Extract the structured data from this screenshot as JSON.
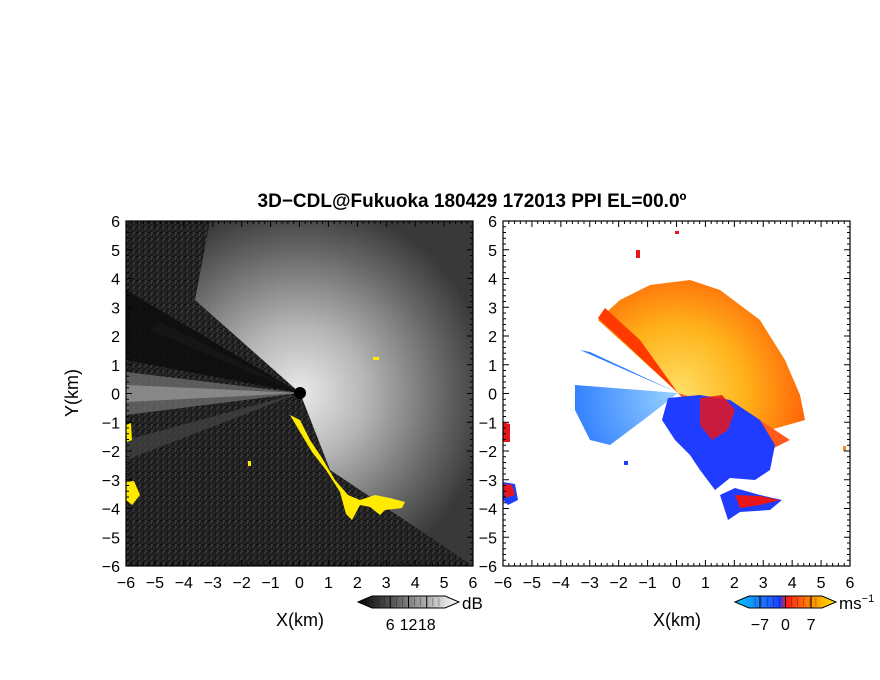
{
  "title": "3D−CDL@Fukuoka 180429 172013 PPI EL=00.0º",
  "colors": {
    "background": "#ffffff",
    "frame": "#000000",
    "reflectivity_dark": "#1a1a1a",
    "reflectivity_bright": "#f2f2f2",
    "clutter": "#ffea00",
    "velocity_away_light": "#ffe14d",
    "velocity_away_mid": "#ff8a1a",
    "velocity_away_dark": "#ff2a00",
    "velocity_toward_light": "#6ec3ff",
    "velocity_toward_dark": "#1f3cff",
    "velocity_edge_red": "#e8151b"
  },
  "chart_data": [
    {
      "type": "heatmap",
      "panel": "reflectivity",
      "xlabel": "X(km)",
      "ylabel": "Y(km)",
      "xlim": [
        -6,
        6
      ],
      "ylim": [
        -6,
        6
      ],
      "x_ticks": [
        "−6",
        "−5",
        "−4",
        "−3",
        "−2",
        "−1",
        "0",
        "1",
        "2",
        "3",
        "4",
        "5",
        "6"
      ],
      "y_ticks": [
        "−6",
        "−5",
        "−4",
        "−3",
        "−2",
        "−1",
        "0",
        "1",
        "2",
        "3",
        "4",
        "5",
        "6"
      ],
      "colorbar": {
        "unit": "dB",
        "ticks": [
          "6",
          "12",
          "18"
        ],
        "range": [
          0,
          24
        ]
      }
    },
    {
      "type": "heatmap",
      "panel": "doppler_velocity",
      "xlabel": "X(km)",
      "xlim": [
        -6,
        6
      ],
      "ylim": [
        -6,
        6
      ],
      "x_ticks": [
        "−6",
        "−5",
        "−4",
        "−3",
        "−2",
        "−1",
        "0",
        "1",
        "2",
        "3",
        "4",
        "5",
        "6"
      ],
      "y_ticks": [
        "−6",
        "−5",
        "−4",
        "−3",
        "−2",
        "−1",
        "0",
        "1",
        "2",
        "3",
        "4",
        "5",
        "6"
      ],
      "colorbar": {
        "unit": "ms",
        "unit_exp": "−1",
        "ticks": [
          "−7",
          "0",
          "7"
        ],
        "range": [
          -10,
          10
        ]
      }
    }
  ]
}
